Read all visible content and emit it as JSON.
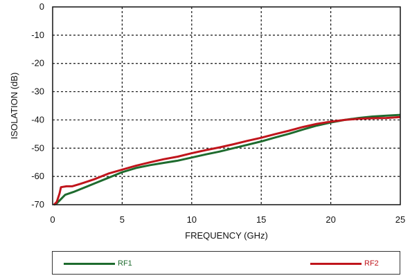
{
  "chart_data": {
    "type": "line",
    "title": "",
    "xlabel": "FREQUENCY (GHz)",
    "ylabel": "ISOLATION (dB)",
    "xlim": [
      0,
      25
    ],
    "ylim": [
      -70,
      0
    ],
    "xticks": [
      0,
      5,
      10,
      15,
      20,
      25
    ],
    "yticks": [
      0,
      -10,
      -20,
      -30,
      -40,
      -50,
      -60,
      -70
    ],
    "grid": true,
    "legend": "bottom",
    "series": [
      {
        "name": "RF1",
        "color": "#1e6b2e",
        "x": [
          0.1,
          0.3,
          0.5,
          0.9,
          1.5,
          2.0,
          3.0,
          4.0,
          5.0,
          6.0,
          7.0,
          8.0,
          9.0,
          10.0,
          11.0,
          12.0,
          13.0,
          14.0,
          15.0,
          16.0,
          17.0,
          18.0,
          19.0,
          20.0,
          21.0,
          22.0,
          23.0,
          24.0,
          25.0
        ],
        "y": [
          -70.0,
          -69.5,
          -68.5,
          -66.5,
          -65.5,
          -64.5,
          -62.5,
          -60.5,
          -58.5,
          -57.0,
          -56.0,
          -55.2,
          -54.4,
          -53.3,
          -52.2,
          -51.2,
          -50.0,
          -48.8,
          -47.6,
          -46.2,
          -44.9,
          -43.4,
          -42.0,
          -40.9,
          -40.0,
          -39.3,
          -38.8,
          -38.5,
          -38.2
        ]
      },
      {
        "name": "RF2",
        "color": "#c0151c",
        "x": [
          0.1,
          0.3,
          0.5,
          0.6,
          1.0,
          1.4,
          2.0,
          3.0,
          4.0,
          5.0,
          6.0,
          7.0,
          8.0,
          9.0,
          10.0,
          11.0,
          12.0,
          13.0,
          14.0,
          15.0,
          16.0,
          17.0,
          18.0,
          19.0,
          20.0,
          21.0,
          22.0,
          23.0,
          24.0,
          25.0
        ],
        "y": [
          -70.0,
          -69.0,
          -66.0,
          -63.8,
          -63.5,
          -63.5,
          -62.6,
          -61.0,
          -59.0,
          -57.6,
          -56.2,
          -55.0,
          -53.9,
          -53.0,
          -51.8,
          -50.7,
          -49.7,
          -48.6,
          -47.4,
          -46.3,
          -45.0,
          -43.8,
          -42.5,
          -41.4,
          -40.6,
          -40.0,
          -39.6,
          -39.4,
          -39.3,
          -39.0
        ]
      }
    ]
  }
}
